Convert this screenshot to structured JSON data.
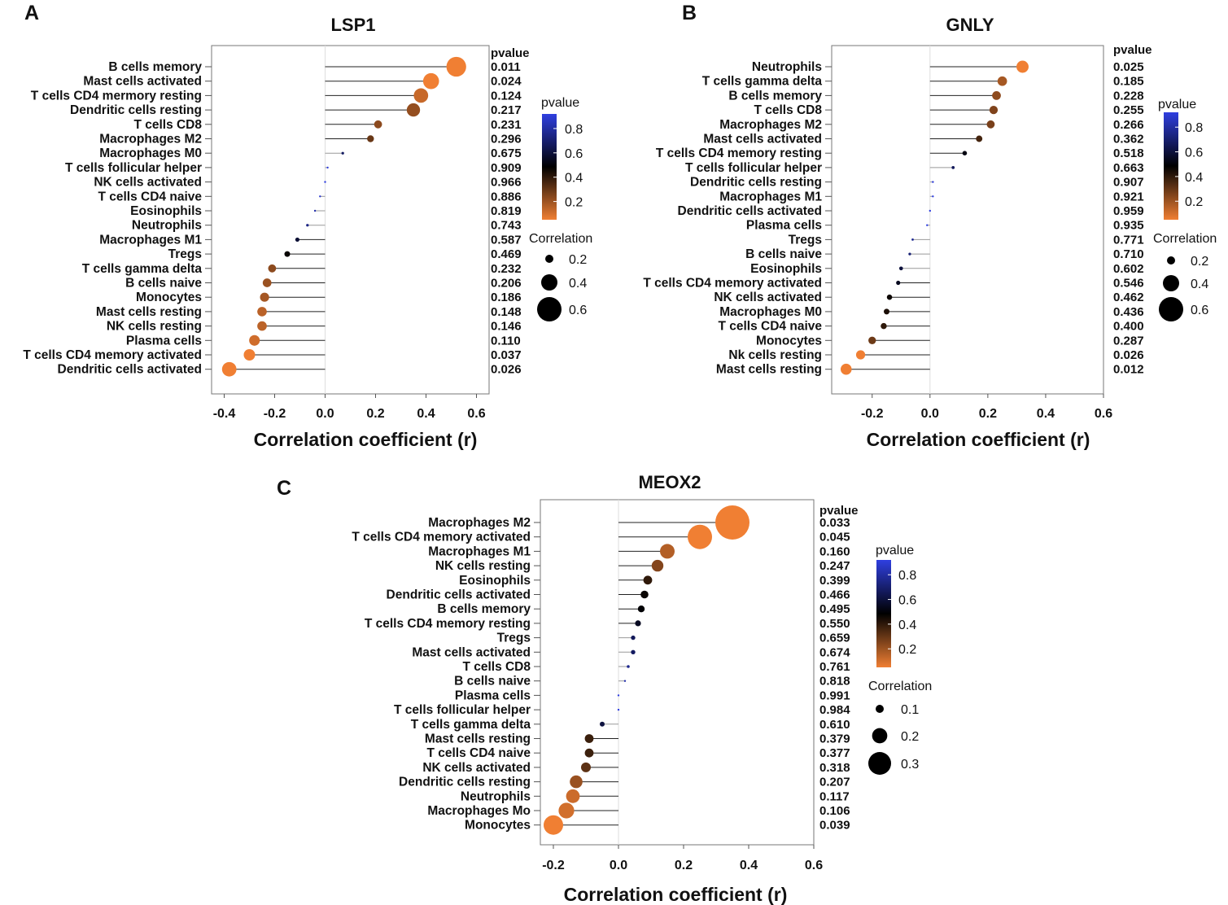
{
  "chart_data": [
    {
      "type": "lollipop",
      "panel_label": "A",
      "title": "LSP1",
      "xlabel": "Correlation coefficient (r)",
      "xlim": [
        -0.45,
        0.65
      ],
      "xticks": [
        -0.4,
        -0.2,
        0.0,
        0.2,
        0.4,
        0.6
      ],
      "xtick_labels": [
        "-0.4",
        "-0.2",
        "0.0",
        "0.2",
        "0.4",
        "0.6"
      ],
      "pvalue_header": "pvalue",
      "categories": [
        "B cells memory",
        "Mast cells activated",
        "T cells CD4 mermory resting",
        "Dendritic cells resting",
        "T cells CD8",
        "Macrophages M2",
        "Macrophages M0",
        "T cells follicular helper",
        "NK cells activated",
        "T cells CD4 naive",
        "Eosinophils",
        "Neutrophils",
        "Macrophages M1",
        "Tregs",
        "T cells gamma delta",
        "B cells naive",
        "Monocytes",
        "Mast cells resting",
        "NK cells resting",
        "Plasma cells",
        "T cells CD4 memory activated",
        "Dendritic cells activated"
      ],
      "values": [
        0.52,
        0.42,
        0.38,
        0.35,
        0.21,
        0.18,
        0.07,
        0.01,
        0.0,
        -0.02,
        -0.04,
        -0.07,
        -0.11,
        -0.15,
        -0.21,
        -0.23,
        -0.24,
        -0.25,
        -0.25,
        -0.28,
        -0.3,
        -0.38
      ],
      "pvalues": [
        "0.011",
        "0.024",
        "0.124",
        "0.217",
        "0.231",
        "0.296",
        "0.675",
        "0.909",
        "0.966",
        "0.886",
        "0.819",
        "0.743",
        "0.587",
        "0.469",
        "0.232",
        "0.206",
        "0.186",
        "0.148",
        "0.146",
        "0.110",
        "0.037",
        "0.026"
      ],
      "color_legend": {
        "title": "pvalue",
        "ticks": [
          "0.8",
          "0.6",
          "0.4",
          "0.2"
        ],
        "tick_values": [
          0.8,
          0.6,
          0.4,
          0.2
        ],
        "range": [
          0.05,
          0.92
        ]
      },
      "size_legend": {
        "title": "Correlation",
        "labels": [
          "0.2",
          "0.4",
          "0.6"
        ],
        "values": [
          0.2,
          0.4,
          0.6
        ]
      }
    },
    {
      "type": "lollipop",
      "panel_label": "B",
      "title": "GNLY",
      "xlabel": "Correlation coefficient (r)",
      "xlim": [
        -0.34,
        0.6
      ],
      "xticks": [
        -0.2,
        0.0,
        0.2,
        0.4,
        0.6
      ],
      "xtick_labels": [
        "-0.2",
        "0.0",
        "0.2",
        "0.4",
        "0.6"
      ],
      "pvalue_header": "pvalue",
      "categories": [
        "Neutrophils",
        "T cells gamma delta",
        "B cells memory",
        "T cells CD8",
        "Macrophages M2",
        "Mast cells activated",
        "T cells CD4 memory resting",
        "T cells follicular helper",
        "Dendritic cells resting",
        "Macrophages M1",
        "Dendritic cells activated",
        "Plasma cells",
        "Tregs",
        "B cells naive",
        "Eosinophils",
        "T cells CD4 memory activated",
        "NK cells activated",
        "Macrophages M0",
        "T cells CD4 naive",
        "Monocytes",
        "Nk cells resting",
        "Mast cells resting"
      ],
      "values": [
        0.32,
        0.25,
        0.23,
        0.22,
        0.21,
        0.17,
        0.12,
        0.08,
        0.01,
        0.01,
        0.0,
        -0.01,
        -0.06,
        -0.07,
        -0.1,
        -0.11,
        -0.14,
        -0.15,
        -0.16,
        -0.2,
        -0.24,
        -0.29
      ],
      "pvalues": [
        "0.025",
        "0.185",
        "0.228",
        "0.255",
        "0.266",
        "0.362",
        "0.518",
        "0.663",
        "0.907",
        "0.921",
        "0.959",
        "0.935",
        "0.771",
        "0.710",
        "0.602",
        "0.546",
        "0.462",
        "0.436",
        "0.400",
        "0.287",
        "0.026",
        "0.012"
      ],
      "color_legend": {
        "title": "pvalue",
        "ticks": [
          "0.8",
          "0.6",
          "0.4",
          "0.2"
        ],
        "tick_values": [
          0.8,
          0.6,
          0.4,
          0.2
        ],
        "range": [
          0.05,
          0.92
        ]
      },
      "size_legend": {
        "title": "Correlation",
        "labels": [
          "0.2",
          "0.4",
          "0.6"
        ],
        "values": [
          0.2,
          0.4,
          0.6
        ]
      }
    },
    {
      "type": "lollipop",
      "panel_label": "C",
      "title": "MEOX2",
      "xlabel": "Correlation coefficient (r)",
      "xlim": [
        -0.24,
        0.6
      ],
      "xticks": [
        -0.2,
        0.0,
        0.2,
        0.4,
        0.6
      ],
      "xtick_labels": [
        "-0.2",
        "0.0",
        "0.2",
        "0.4",
        "0.6"
      ],
      "pvalue_header": "pvalue",
      "categories": [
        "Macrophages M2",
        "T cells CD4 memory activated",
        "Macrophages M1",
        "NK cells resting",
        "Eosinophils",
        "Dendritic cells activated",
        "B cells memory",
        "T cells CD4 memory resting",
        "Tregs",
        "Mast cells activated",
        "T cells CD8",
        "B cells naive",
        "Plasma cells",
        "T cells follicular helper",
        "T cells gamma delta",
        "Mast cells resting",
        "T cells CD4 naive",
        "NK cells activated",
        "Dendritic cells resting",
        "Neutrophils",
        "Macrophages Mo",
        "Monocytes"
      ],
      "values": [
        0.35,
        0.25,
        0.15,
        0.12,
        0.09,
        0.08,
        0.07,
        0.06,
        0.045,
        0.045,
        0.03,
        0.02,
        0.0,
        0.0,
        -0.05,
        -0.09,
        -0.09,
        -0.1,
        -0.13,
        -0.14,
        -0.16,
        -0.2
      ],
      "pvalues": [
        "0.033",
        "0.045",
        "0.160",
        "0.247",
        "0.399",
        "0.466",
        "0.495",
        "0.550",
        "0.659",
        "0.674",
        "0.761",
        "0.818",
        "0.991",
        "0.984",
        "0.610",
        "0.379",
        "0.377",
        "0.318",
        "0.207",
        "0.117",
        "0.106",
        "0.039"
      ],
      "color_legend": {
        "title": "pvalue",
        "ticks": [
          "0.8",
          "0.6",
          "0.4",
          "0.2"
        ],
        "tick_values": [
          0.8,
          0.6,
          0.4,
          0.2
        ],
        "range": [
          0.05,
          0.92
        ]
      },
      "size_legend": {
        "title": "Correlation",
        "labels": [
          "0.1",
          "0.2",
          "0.3"
        ],
        "values": [
          0.1,
          0.2,
          0.3
        ]
      }
    }
  ],
  "colors": {
    "low_p": "#f07f33",
    "mid_p": "#000000",
    "high_p": "#2f3fe0"
  }
}
